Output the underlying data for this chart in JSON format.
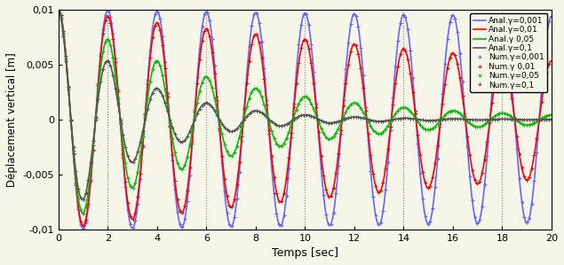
{
  "title": "",
  "xlabel": "Temps [sec]",
  "ylabel": "Déplacement vertical [m]",
  "xlim": [
    0,
    20
  ],
  "ylim": [
    -0.01,
    0.01
  ],
  "xticks": [
    0,
    2,
    4,
    6,
    8,
    10,
    12,
    14,
    16,
    18,
    20
  ],
  "yticks": [
    -0.01,
    -0.005,
    0,
    0.005,
    0.01
  ],
  "ytick_labels": [
    "-0,01",
    "-0,005",
    "0",
    "0,005",
    "0,01"
  ],
  "xtick_labels": [
    "0",
    "2",
    "4",
    "6",
    "8",
    "10",
    "12",
    "14",
    "16",
    "18",
    "20"
  ],
  "grid_xticks": [
    2,
    6,
    10,
    14,
    18
  ],
  "gamma_values": [
    0.001,
    0.01,
    0.05,
    0.1
  ],
  "colors": [
    "#6666ff",
    "#ff0000",
    "#00bb00",
    "#555555"
  ],
  "A0": 0.01,
  "omega": 3.14159,
  "t_max": 20,
  "num_points_anal": 1000,
  "num_points_num": 200,
  "legend_labels_anal": [
    "Anal.γ=0,001",
    "Anal.γ=0,01",
    "Anal.γ 0,05",
    "Anal.γ=0,1"
  ],
  "legend_labels_num": [
    "Num.γ=0,001",
    "Num.γ 0,01",
    "Num.γ=0,05",
    "Num.γ=0,1"
  ],
  "background_color": "#f5f5e8",
  "figsize": [
    6.35,
    2.99
  ],
  "dpi": 100
}
